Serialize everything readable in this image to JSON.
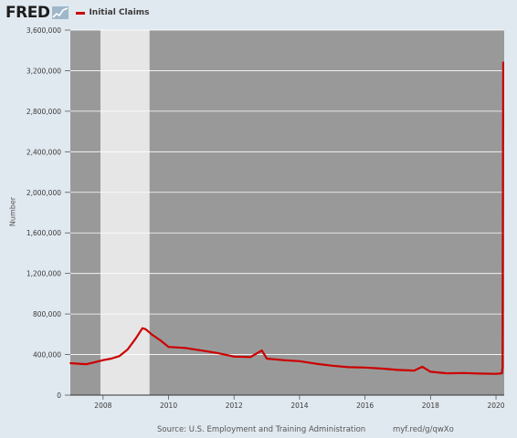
{
  "header": {
    "logo_text": "FRED",
    "logo_icon": "chart-line-icon",
    "legend_label": "Initial Claims",
    "legend_color": "#cc0000"
  },
  "footer": {
    "source": "Source: U.S. Employment and Training Administration",
    "shortlink": "myf.red/g/qwXo"
  },
  "chart_data": {
    "type": "line",
    "title": "",
    "xlabel": "",
    "ylabel": "Number",
    "xlim": [
      2007.0,
      2020.25
    ],
    "ylim": [
      0,
      3600000
    ],
    "yticks": [
      0,
      400000,
      800000,
      1200000,
      1600000,
      2000000,
      2400000,
      2800000,
      3200000,
      3600000
    ],
    "ytick_labels": [
      "0",
      "400,000",
      "800,000",
      "1,200,000",
      "1,600,000",
      "2,000,000",
      "2,400,000",
      "2,800,000",
      "3,200,000",
      "3,600,000"
    ],
    "xticks": [
      2008,
      2010,
      2012,
      2014,
      2016,
      2018,
      2020
    ],
    "xtick_labels": [
      "2008",
      "2010",
      "2012",
      "2014",
      "2016",
      "2018",
      "2020"
    ],
    "recessions": [
      {
        "start": 2007.92,
        "end": 2009.42
      }
    ],
    "grid": true,
    "plot_background": "#999999",
    "recession_color": "#e6e6e6",
    "series": [
      {
        "name": "Initial Claims",
        "color": "#cc0000",
        "points": [
          [
            2007.0,
            315000
          ],
          [
            2007.25,
            310000
          ],
          [
            2007.5,
            305000
          ],
          [
            2007.75,
            325000
          ],
          [
            2008.0,
            345000
          ],
          [
            2008.25,
            360000
          ],
          [
            2008.5,
            385000
          ],
          [
            2008.75,
            450000
          ],
          [
            2009.0,
            560000
          ],
          [
            2009.2,
            660000
          ],
          [
            2009.3,
            650000
          ],
          [
            2009.5,
            595000
          ],
          [
            2009.75,
            540000
          ],
          [
            2010.0,
            475000
          ],
          [
            2010.5,
            465000
          ],
          [
            2011.0,
            440000
          ],
          [
            2011.5,
            415000
          ],
          [
            2012.0,
            380000
          ],
          [
            2012.5,
            375000
          ],
          [
            2012.85,
            440000
          ],
          [
            2013.0,
            360000
          ],
          [
            2013.5,
            345000
          ],
          [
            2014.0,
            335000
          ],
          [
            2014.5,
            310000
          ],
          [
            2015.0,
            290000
          ],
          [
            2015.5,
            275000
          ],
          [
            2016.0,
            272000
          ],
          [
            2016.5,
            262000
          ],
          [
            2017.0,
            248000
          ],
          [
            2017.5,
            242000
          ],
          [
            2017.75,
            280000
          ],
          [
            2018.0,
            230000
          ],
          [
            2018.5,
            215000
          ],
          [
            2019.0,
            218000
          ],
          [
            2019.5,
            212000
          ],
          [
            2020.0,
            210000
          ],
          [
            2020.18,
            215000
          ],
          [
            2020.2,
            282000
          ],
          [
            2020.22,
            3283000
          ]
        ]
      }
    ]
  }
}
